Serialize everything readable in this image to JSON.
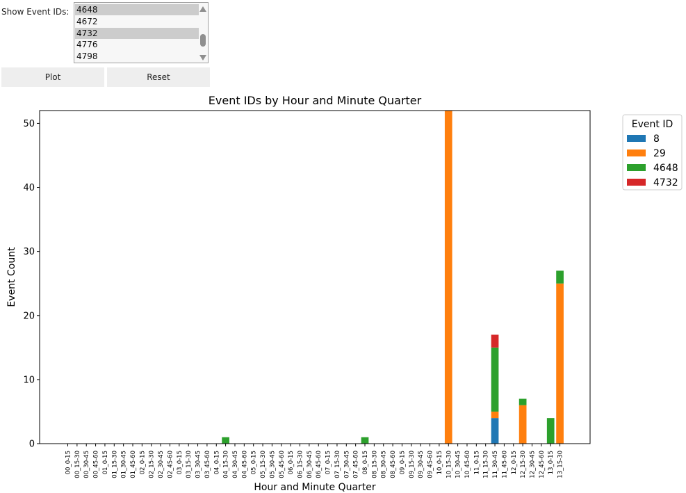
{
  "controls": {
    "label": "Show Event IDs:",
    "list_items": [
      {
        "text": "4648",
        "selected": true
      },
      {
        "text": "4672",
        "selected": false
      },
      {
        "text": "4732",
        "selected": true
      },
      {
        "text": "4776",
        "selected": false
      },
      {
        "text": "4798",
        "selected": false
      }
    ],
    "plot_label": "Plot",
    "reset_label": "Reset"
  },
  "chart_data": {
    "type": "bar",
    "stacked": true,
    "title": "Event IDs by Hour and Minute Quarter",
    "xlabel": "Hour and Minute Quarter",
    "ylabel": "Event Count",
    "ylim": [
      0,
      52
    ],
    "yticks": [
      0,
      10,
      20,
      30,
      40,
      50
    ],
    "grid": false,
    "legend_title": "Event ID",
    "legend_position": "outside-top-right",
    "categories": [
      "00_0-15",
      "00_15-30",
      "00_30-45",
      "00_45-60",
      "01_0-15",
      "01_15-30",
      "01_30-45",
      "01_45-60",
      "02_0-15",
      "02_15-30",
      "02_30-45",
      "02_45-60",
      "03_0-15",
      "03_15-30",
      "03_30-45",
      "03_45-60",
      "04_0-15",
      "04_15-30",
      "04_30-45",
      "04_45-60",
      "05_0-15",
      "05_15-30",
      "05_30-45",
      "05_45-60",
      "06_0-15",
      "06_15-30",
      "06_30-45",
      "06_45-60",
      "07_0-15",
      "07_15-30",
      "07_30-45",
      "07_45-60",
      "08_0-15",
      "08_15-30",
      "08_30-45",
      "08_45-60",
      "09_0-15",
      "09_15-30",
      "09_30-45",
      "09_45-60",
      "10_0-15",
      "10_15-30",
      "10_30-45",
      "10_45-60",
      "11_0-15",
      "11_15-30",
      "11_30-45",
      "11_45-60",
      "12_0-15",
      "12_15-30",
      "12_30-45",
      "12_45-60",
      "13_0-15",
      "13_15-30"
    ],
    "series": [
      {
        "name": "8",
        "color": "#1f77b4",
        "values": [
          0,
          0,
          0,
          0,
          0,
          0,
          0,
          0,
          0,
          0,
          0,
          0,
          0,
          0,
          0,
          0,
          0,
          0,
          0,
          0,
          0,
          0,
          0,
          0,
          0,
          0,
          0,
          0,
          0,
          0,
          0,
          0,
          0,
          0,
          0,
          0,
          0,
          0,
          0,
          0,
          0,
          0,
          0,
          0,
          0,
          0,
          4,
          0,
          0,
          0,
          0,
          0,
          0,
          0
        ]
      },
      {
        "name": "29",
        "color": "#ff7f0e",
        "values": [
          0,
          0,
          0,
          0,
          0,
          0,
          0,
          0,
          0,
          0,
          0,
          0,
          0,
          0,
          0,
          0,
          0,
          0,
          0,
          0,
          0,
          0,
          0,
          0,
          0,
          0,
          0,
          0,
          0,
          0,
          0,
          0,
          0,
          0,
          0,
          0,
          0,
          0,
          0,
          0,
          0,
          52,
          0,
          0,
          0,
          0,
          1,
          0,
          0,
          6,
          0,
          0,
          0,
          25
        ]
      },
      {
        "name": "4648",
        "color": "#2ca02c",
        "values": [
          0,
          0,
          0,
          0,
          0,
          0,
          0,
          0,
          0,
          0,
          0,
          0,
          0,
          0,
          0,
          0,
          0,
          1,
          0,
          0,
          0,
          0,
          0,
          0,
          0,
          0,
          0,
          0,
          0,
          0,
          0,
          0,
          1,
          0,
          0,
          0,
          0,
          0,
          0,
          0,
          0,
          0,
          0,
          0,
          0,
          0,
          10,
          0,
          0,
          1,
          0,
          0,
          4,
          2
        ]
      },
      {
        "name": "4732",
        "color": "#d62728",
        "values": [
          0,
          0,
          0,
          0,
          0,
          0,
          0,
          0,
          0,
          0,
          0,
          0,
          0,
          0,
          0,
          0,
          0,
          0,
          0,
          0,
          0,
          0,
          0,
          0,
          0,
          0,
          0,
          0,
          0,
          0,
          0,
          0,
          0,
          0,
          0,
          0,
          0,
          0,
          0,
          0,
          0,
          0,
          0,
          0,
          0,
          0,
          2,
          0,
          0,
          0,
          0,
          0,
          0,
          0
        ]
      }
    ]
  }
}
